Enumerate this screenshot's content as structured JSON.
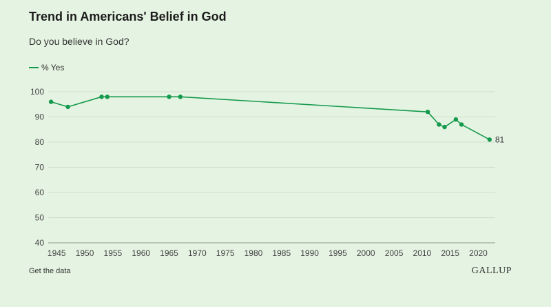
{
  "chart_data": {
    "type": "line",
    "title": "Trend in Americans' Belief in God",
    "subtitle": "Do you believe in God?",
    "xlabel": "",
    "ylabel": "",
    "xlim": [
      1943.5,
      2023
    ],
    "ylim": [
      40,
      100
    ],
    "x_ticks": [
      1945,
      1950,
      1955,
      1960,
      1965,
      1970,
      1975,
      1980,
      1985,
      1990,
      1995,
      2000,
      2005,
      2010,
      2015,
      2020
    ],
    "y_ticks": [
      40,
      50,
      60,
      70,
      80,
      90,
      100
    ],
    "grid": true,
    "legend_position": "top-left",
    "series": [
      {
        "name": "% Yes",
        "color": "#149a4c",
        "points": [
          {
            "x": 1944,
            "y": 96
          },
          {
            "x": 1947,
            "y": 94
          },
          {
            "x": 1953,
            "y": 98
          },
          {
            "x": 1954,
            "y": 98
          },
          {
            "x": 1965,
            "y": 98
          },
          {
            "x": 1967,
            "y": 98
          },
          {
            "x": 2011,
            "y": 92
          },
          {
            "x": 2013,
            "y": 87
          },
          {
            "x": 2014,
            "y": 86
          },
          {
            "x": 2016,
            "y": 89
          },
          {
            "x": 2017,
            "y": 87
          },
          {
            "x": 2022,
            "y": 81
          }
        ]
      }
    ],
    "end_label": "81"
  },
  "footer": {
    "get_data_label": "Get the data",
    "logo_text": "GALLUP"
  }
}
